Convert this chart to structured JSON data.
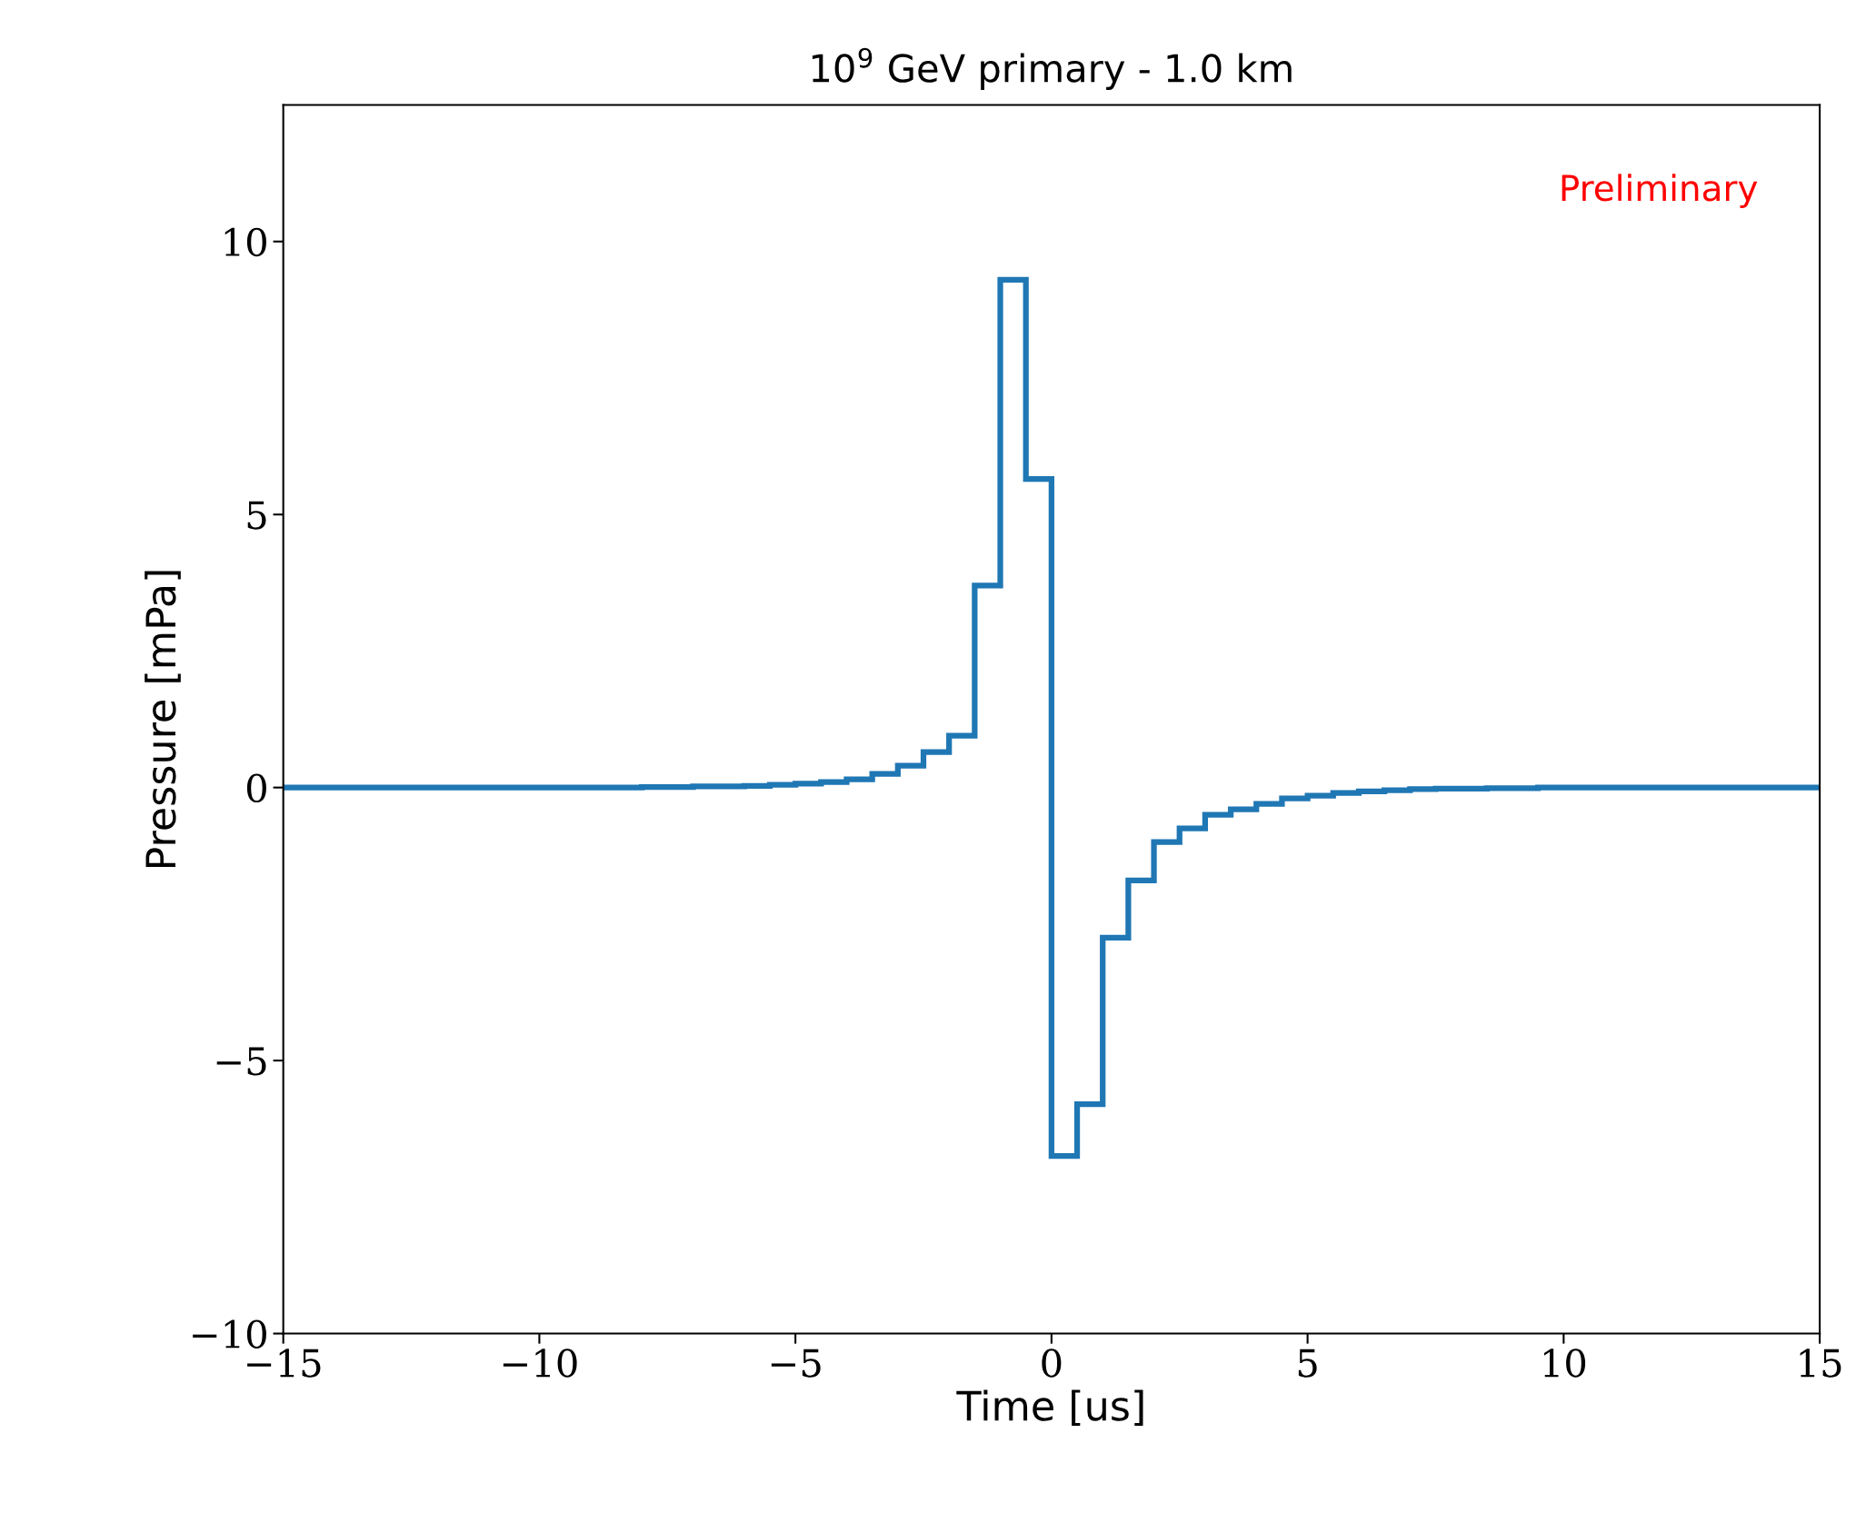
{
  "chart_data": {
    "type": "histogram",
    "title": "10$^{9}$ GeV primary - 1.0 km",
    "xlabel": "Time [us]",
    "ylabel": "Pressure [mPa]",
    "annotations": [
      "Preliminary"
    ],
    "bins": [
      -15,
      -14.5,
      -14,
      -13.5,
      -13,
      -12.5,
      -12,
      -11.5,
      -11,
      -10.5,
      -10,
      -9.5,
      -9,
      -8.5,
      -8,
      -7.5,
      -7,
      -6.5,
      -6,
      -5.5,
      -5,
      -4.5,
      -4,
      -3.5,
      -3,
      -2.5,
      -2,
      -1.5,
      -1,
      -0.5,
      0,
      0.5,
      1,
      1.5,
      2,
      2.5,
      3,
      3.5,
      4,
      4.5,
      5,
      5.5,
      6,
      6.5,
      7,
      7.5,
      8,
      8.5,
      9,
      9.5,
      10,
      10.5,
      11,
      11.5,
      12,
      12.5,
      13,
      13.5,
      14,
      14.5,
      15
    ],
    "values": [
      0,
      0,
      0,
      0,
      0,
      0,
      0,
      0,
      0,
      0,
      0,
      0,
      0,
      0,
      0.01,
      0.01,
      0.02,
      0.02,
      0.03,
      0.05,
      0.07,
      0.1,
      0.15,
      0.25,
      0.4,
      0.65,
      0.95,
      3.7,
      9.3,
      5.65,
      -6.75,
      -5.8,
      -2.75,
      -1.7,
      -1.0,
      -0.75,
      -0.5,
      -0.4,
      -0.3,
      -0.2,
      -0.15,
      -0.1,
      -0.07,
      -0.05,
      -0.03,
      -0.02,
      -0.02,
      -0.01,
      -0.01,
      0,
      0,
      0,
      0,
      0,
      0,
      0,
      0,
      0,
      0,
      0
    ],
    "color": "#1f77b4",
    "xlim": [
      -15,
      15
    ],
    "ylim": [
      -10,
      12.5
    ],
    "xticks": [
      {
        "value": -15,
        "label": "−15"
      },
      {
        "value": -10,
        "label": "−10"
      },
      {
        "value": -5,
        "label": "−5"
      },
      0,
      5,
      10,
      15
    ],
    "yticks": [
      {
        "value": -10,
        "label": "−10"
      },
      {
        "value": -5,
        "label": "−5"
      },
      0,
      5,
      10
    ],
    "grid": false
  }
}
